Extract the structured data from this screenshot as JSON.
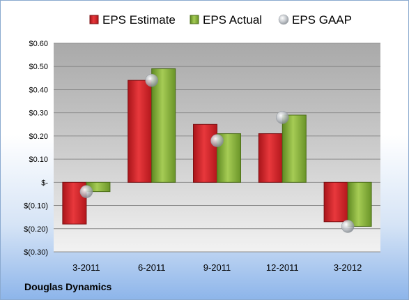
{
  "company": "Douglas Dynamics",
  "chart_data": {
    "type": "bar",
    "categories": [
      "3-2011",
      "6-2011",
      "9-2011",
      "12-2011",
      "3-2012"
    ],
    "series": [
      {
        "name": "EPS Estimate",
        "type": "bar",
        "color": "#d9262b",
        "values": [
          -0.18,
          0.44,
          0.25,
          0.21,
          -0.17
        ]
      },
      {
        "name": "EPS Actual",
        "type": "bar",
        "color": "#8bb43c",
        "values": [
          -0.04,
          0.49,
          0.21,
          0.29,
          -0.19
        ]
      },
      {
        "name": "EPS GAAP",
        "type": "scatter",
        "color": "#b8bcc2",
        "values": [
          -0.04,
          0.44,
          0.18,
          0.28,
          -0.19
        ]
      }
    ],
    "ylim": [
      -0.3,
      0.6
    ],
    "yticks": [
      0.6,
      0.5,
      0.4,
      0.3,
      0.2,
      0.1,
      0.0,
      -0.1,
      -0.2,
      -0.3
    ],
    "ytick_labels": [
      "$0.60",
      "$0.50",
      "$0.40",
      "$0.30",
      "$0.20",
      "$0.10",
      "$-",
      "$(0.10)",
      "$(0.20)",
      "$(0.30)"
    ],
    "grid": true,
    "legend": "top"
  }
}
